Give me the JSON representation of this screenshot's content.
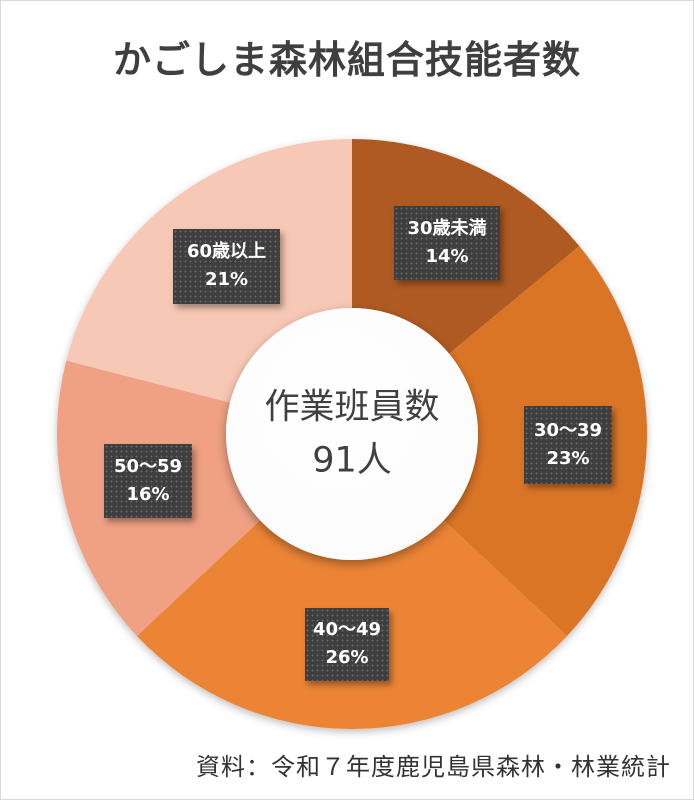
{
  "window": {
    "background": "#FFFFFF",
    "border_color": "#D9D9D9"
  },
  "header": {
    "title": "かごしま森林組合技能者数",
    "title_color": "#3F3F3F"
  },
  "chart_data": {
    "type": "pie",
    "subtype": "donut",
    "title": "かごしま森林組合技能者数",
    "direction": "clockwise",
    "start_angle_deg": 0,
    "center_label": {
      "line1": "作業班員数",
      "line2": "91人"
    },
    "total_value": 91,
    "total_unit": "人",
    "slices": [
      {
        "label": "30歳未満",
        "percent": 14,
        "percent_label": "14%",
        "color": "#AF5A23"
      },
      {
        "label": "30〜39",
        "percent": 23,
        "percent_label": "23%",
        "color": "#DB7428"
      },
      {
        "label": "40〜49",
        "percent": 26,
        "percent_label": "26%",
        "color": "#EC8434"
      },
      {
        "label": "50〜59",
        "percent": 16,
        "percent_label": "16%",
        "color": "#F0A183"
      },
      {
        "label": "60歳以上",
        "percent": 21,
        "percent_label": "21%",
        "color": "#F7C8B5"
      }
    ],
    "data_label_style": {
      "background": "#3E3E3E",
      "text_color": "#FFFFFF",
      "pattern": "dotted"
    },
    "legend": "none"
  },
  "footer": {
    "source_note": "資料：令和７年度鹿児島県森林・林業統計"
  }
}
